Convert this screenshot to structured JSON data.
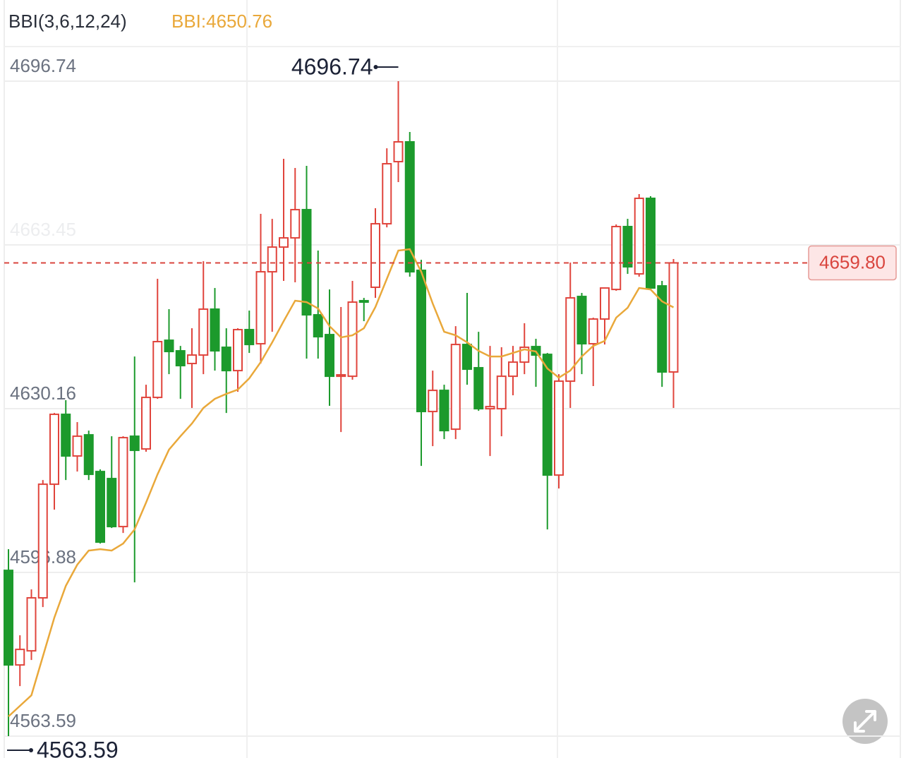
{
  "chart_data": {
    "type": "candlestick",
    "title": "BBI(3,6,12,24)",
    "indicator_label": "BBI:4650.76",
    "ylim": [
      4563.59,
      4696.74
    ],
    "yticks": [
      4563.59,
      4596.88,
      4630.16,
      4663.45,
      4696.74
    ],
    "grid": true,
    "up_color": "#e0443c",
    "down_color": "#1c9a2c",
    "open": [
      4597.29,
      4578.06,
      4580.93,
      4591.7,
      4614.8,
      4629.01,
      4620.54,
      4624.84,
      4617.38,
      4615.95,
      4606.19,
      4624.56,
      4621.97,
      4632.45,
      4644.07,
      4641.92,
      4639.34,
      4641.06,
      4650.39,
      4642.64,
      4637.9,
      4646.23,
      4643.36,
      4657.99,
      4663.01,
      4664.88,
      4670.62,
      4649.24,
      4645.22,
      4636.75,
      4636.75,
      4652.11,
      4654.84,
      4667.75,
      4680.38,
      4684.4,
      4658.28,
      4629.58,
      4633.88,
      4625.99,
      4643.21,
      4638.48,
      4630.15,
      4630.15,
      4636.75,
      4639.62,
      4642.78,
      4641.2,
      4616.66,
      4635.75,
      4652.97,
      4643.36,
      4648.38,
      4654.4,
      4667.18,
      4657.56,
      4672.92,
      4655.12,
      4637.62
    ],
    "high": [
      4601.6,
      4584.09,
      4593.42,
      4615.66,
      4629.29,
      4631.88,
      4627.43,
      4625.7,
      4617.81,
      4624.56,
      4624.56,
      4640.77,
      4635.03,
      4656.56,
      4650.39,
      4642.92,
      4646.51,
      4660.14,
      4654.69,
      4646.51,
      4646.51,
      4650.1,
      4669.76,
      4668.75,
      4680.95,
      4679.09,
      4679.52,
      4662.3,
      4654.4,
      4650.82,
      4656.13,
      4652.68,
      4670.91,
      4683.1,
      4696.74,
      4686.41,
      4660.43,
      4637.9,
      4635.03,
      4646.94,
      4653.69,
      4645.79,
      4642.92,
      4642.64,
      4642.92,
      4647.52,
      4644.36,
      4641.49,
      4637.18,
      4659.86,
      4653.69,
      4648.66,
      4654.69,
      4667.61,
      4668.75,
      4673.78,
      4673.35,
      4656.13,
      4660.58
    ],
    "low": [
      4563.59,
      4573.76,
      4579.07,
      4589.83,
      4609.63,
      4615.66,
      4617.38,
      4615.66,
      4602.74,
      4605.9,
      4604.9,
      4594.85,
      4621.4,
      4632.16,
      4637.18,
      4632.16,
      4630.3,
      4637.18,
      4637.9,
      4629.29,
      4633.6,
      4641.49,
      4639.34,
      4645.79,
      4656.13,
      4655.84,
      4640.34,
      4640.34,
      4630.73,
      4625.42,
      4636.04,
      4647.95,
      4652.68,
      4667.03,
      4676.22,
      4656.99,
      4618.53,
      4622.55,
      4623.98,
      4623.98,
      4635.03,
      4629.72,
      4620.54,
      4624.56,
      4632.88,
      4637.18,
      4634.6,
      4605.61,
      4613.94,
      4630.3,
      4637.18,
      4634.75,
      4643.21,
      4654.12,
      4657.56,
      4656.99,
      4654.4,
      4634.6,
      4630.3
    ],
    "close": [
      4578.06,
      4581.22,
      4591.7,
      4614.8,
      4629.01,
      4620.54,
      4624.56,
      4616.81,
      4603.03,
      4606.19,
      4624.27,
      4621.69,
      4632.45,
      4643.79,
      4641.78,
      4638.91,
      4641.06,
      4650.39,
      4641.92,
      4637.9,
      4646.23,
      4643.21,
      4657.99,
      4663.01,
      4664.88,
      4670.62,
      4649.24,
      4644.79,
      4636.75,
      4637.04,
      4651.82,
      4651.82,
      4667.75,
      4679.95,
      4684.4,
      4657.99,
      4629.58,
      4633.88,
      4625.7,
      4643.21,
      4638.19,
      4630.15,
      4630.58,
      4636.75,
      4639.62,
      4642.64,
      4641.06,
      4616.66,
      4635.75,
      4652.68,
      4643.36,
      4648.38,
      4654.69,
      4667.18,
      4659.0,
      4672.92,
      4654.69,
      4637.62,
      4659.8
    ],
    "series": [
      {
        "name": "BBI",
        "color": "#e9a83a",
        "values": [
          4567.59,
          4569.74,
          4571.89,
          4579.78,
          4587.68,
          4594.13,
          4598.44,
          4601.31,
          4601.6,
          4601.31,
          4602.74,
          4605.61,
          4611.07,
          4616.81,
          4621.83,
          4624.56,
          4627.14,
          4630.3,
          4632.16,
          4633.17,
          4634.03,
          4636.32,
          4639.62,
          4643.64,
          4647.95,
          4652.11,
          4651.82,
          4650.53,
          4646.94,
          4644.65,
          4645.08,
          4646.51,
          4650.82,
          4656.56,
          4662.3,
          4662.58,
          4657.99,
          4651.53,
          4645.79,
          4645.08,
          4643.64,
          4641.92,
          4640.77,
          4640.77,
          4641.49,
          4642.21,
          4641.78,
          4638.33,
          4636.47,
          4637.9,
          4640.77,
          4642.92,
          4643.93,
          4648.66,
          4650.67,
          4654.69,
          4654.4,
          4651.97,
          4650.76
        ]
      }
    ],
    "max_label": 4696.74,
    "min_label": 4563.59,
    "price_line": {
      "value": 4659.8,
      "label": "4659.80",
      "color": "#d9453e"
    }
  }
}
